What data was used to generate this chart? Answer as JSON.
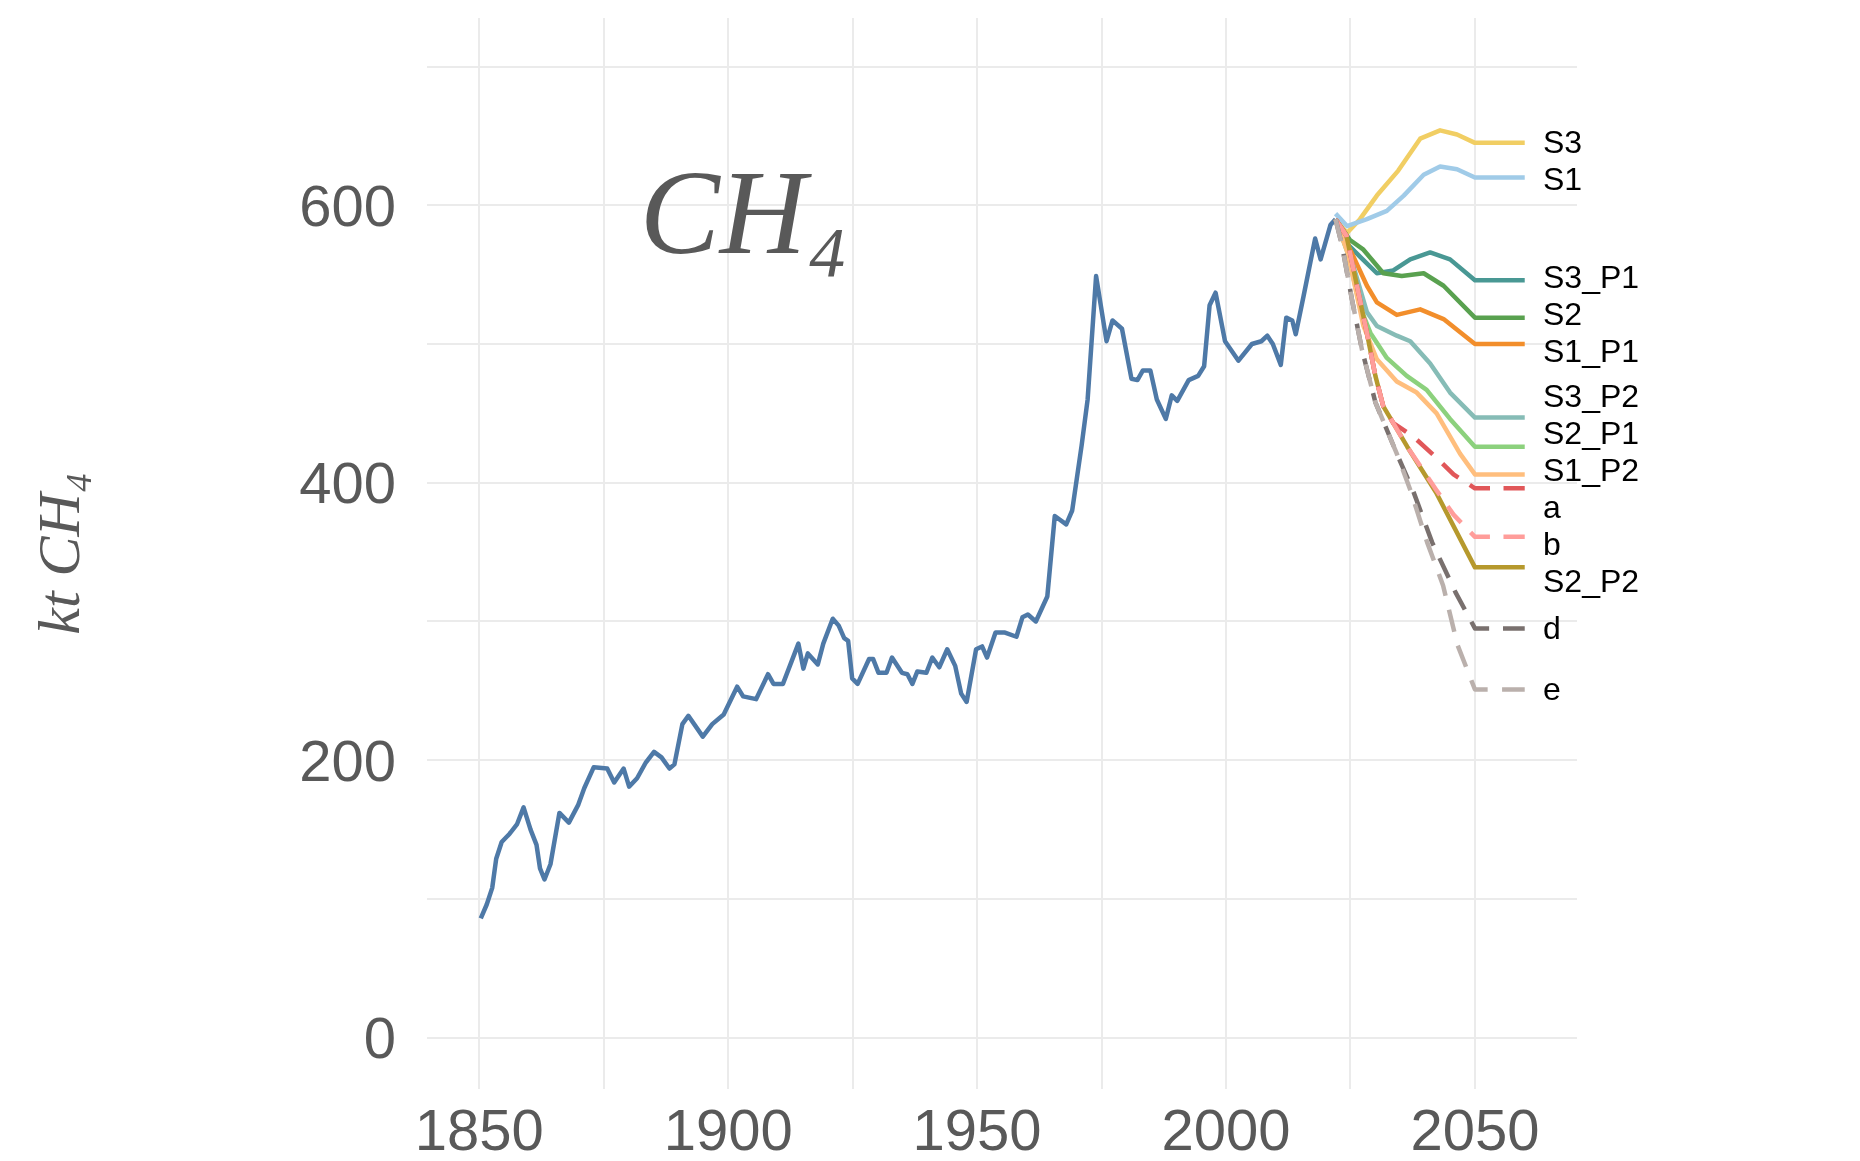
{
  "chart_data": {
    "type": "line",
    "title": "CH₄",
    "ylabel": "kt CH₄",
    "xlim": [
      1839.5,
      2070.5
    ],
    "ylim": [
      -37,
      735
    ],
    "xticks": [
      1850,
      {
        "value": 1875,
        "label": null
      },
      1900,
      {
        "value": 1925,
        "label": null
      },
      1950,
      {
        "value": 1975,
        "label": null
      },
      2000,
      {
        "value": 2025,
        "label": null
      },
      2050
    ],
    "yticks": [
      0,
      {
        "value": 100,
        "label": null
      },
      200,
      {
        "value": 300,
        "label": null
      },
      400,
      {
        "value": 500,
        "label": null
      },
      600,
      {
        "value": 700,
        "label": null
      }
    ],
    "grid": true,
    "legend": false,
    "series": [
      {
        "color": "#4e79a7",
        "x": [
          1850.3,
          1851.5,
          1852.6,
          1853.4,
          1854.5,
          1856.1,
          1857.6,
          1858.9,
          1860.3,
          1861.5,
          1862.2,
          1863.1,
          1864.3,
          1866.1,
          1868.0,
          1869.9,
          1871.1,
          1873.0,
          1875.7,
          1877.1,
          1879.0,
          1880.1,
          1881.7,
          1883.4,
          1885.1,
          1886.6,
          1888.2,
          1889.2,
          1890.8,
          1892.0,
          1894.9,
          1896.8,
          1899.1,
          1901.8,
          1903.0,
          1905.6,
          1908.0,
          1909.1,
          1911.0,
          1914.1,
          1915.1,
          1916.0,
          1918.0,
          1919.1,
          1921.0,
          1922.2,
          1923.3,
          1924.1,
          1924.9,
          1926.0,
          1928.3,
          1929.1,
          1930.2,
          1931.8,
          1932.9,
          1934.9,
          1936.0,
          1937.0,
          1938.0,
          1939.8,
          1941.0,
          1942.4,
          1944.0,
          1945.6,
          1946.8,
          1947.9,
          1949.8,
          1951.0,
          1952.0,
          1953.7,
          1955.6,
          1957.9,
          1959.1,
          1960.2,
          1961.8,
          1964.1,
          1965.6,
          1967.9,
          1969.1,
          1971.0,
          1972.2,
          1973.9,
          1976.0,
          1977.2,
          1979.1,
          1981.0,
          1982.2,
          1983.3,
          1984.8,
          1986.1,
          1987.9,
          1989.1,
          1990.2,
          1992.5,
          1994.4,
          1995.6,
          1996.7,
          1997.9,
          1999.8,
          2002.5,
          2005.2,
          2007.1,
          2008.3,
          2009.4,
          2011.0,
          2012.1,
          2013.3,
          2014.0,
          2015.6,
          2017.9,
          2019.0,
          2021.0,
          2022.0
        ],
        "values": [
          86,
          96,
          108,
          129,
          141,
          147,
          154,
          166,
          150,
          139,
          122,
          114,
          125,
          162,
          155,
          168,
          180,
          195,
          194,
          184,
          194,
          181,
          187,
          198,
          206,
          202,
          194,
          197,
          226,
          232,
          217,
          226,
          233,
          253,
          246,
          244,
          262,
          255,
          255,
          284,
          266,
          277,
          269,
          284,
          302,
          297,
          288,
          286,
          259,
          255,
          273,
          273,
          263,
          263,
          274,
          263,
          262,
          255,
          264,
          263,
          274,
          267,
          280,
          268,
          248,
          242,
          280,
          282,
          274,
          292,
          292,
          289,
          303,
          305,
          300,
          318,
          376,
          370,
          380,
          427,
          460,
          549,
          502,
          517,
          511,
          475,
          474,
          481,
          481,
          460,
          446,
          463,
          459,
          474,
          477,
          484,
          528,
          537,
          502,
          488,
          500,
          502,
          506,
          500,
          485,
          519,
          517,
          507,
          535,
          576,
          561,
          586,
          590
        ]
      },
      {
        "name": "S3",
        "color": "#f1ce63",
        "x": [
          2022,
          2024.3,
          2026.9,
          2030.3,
          2034.6,
          2039,
          2043,
          2046.4,
          2050,
          2060
        ],
        "values": [
          590,
          580,
          590,
          607,
          625,
          648,
          654,
          651,
          645,
          645
        ]
      },
      {
        "name": "S1",
        "color": "#a0cbe8",
        "x": [
          2022,
          2024.3,
          2028.3,
          2032.3,
          2035.7,
          2039.7,
          2043,
          2046.4,
          2050,
          2060
        ],
        "values": [
          594,
          585,
          590,
          596,
          607,
          622,
          628,
          626,
          620,
          620
        ]
      },
      {
        "name": "S3_P1",
        "color": "#499894",
        "x": [
          2022,
          2023.6,
          2026.9,
          2030.3,
          2033.6,
          2037,
          2041,
          2045,
          2050,
          2060
        ],
        "values": [
          590,
          575,
          563,
          551,
          553,
          561,
          566,
          561,
          546,
          546
        ]
      },
      {
        "name": "S2",
        "color": "#59a14f",
        "x": [
          2022,
          2024.9,
          2027.6,
          2031.6,
          2035.3,
          2039.7,
          2043.7,
          2050,
          2060
        ],
        "values": [
          590,
          575,
          568,
          551,
          549,
          551,
          542,
          519,
          519
        ]
      },
      {
        "name": "S1_P1",
        "color": "#f28e2b",
        "x": [
          2022,
          2025.6,
          2028.3,
          2030.3,
          2034.3,
          2039,
          2043.7,
          2050,
          2060
        ],
        "values": [
          590,
          563,
          542,
          530,
          521,
          525,
          518,
          500,
          500
        ]
      },
      {
        "name": "S3_P2",
        "color": "#86bcb6",
        "x": [
          2022,
          2025.6,
          2028.3,
          2030.3,
          2034.3,
          2037,
          2041,
          2045,
          2050,
          2060
        ],
        "values": [
          590,
          556,
          523,
          513,
          506,
          502,
          486,
          465,
          447,
          447
        ]
      },
      {
        "name": "S2_P1",
        "color": "#8cd17d",
        "x": [
          2022,
          2024.5,
          2026.9,
          2029,
          2032.3,
          2036.3,
          2040.3,
          2045,
          2050,
          2060
        ],
        "values": [
          590,
          565,
          527,
          508,
          490,
          477,
          467,
          446,
          426,
          426
        ]
      },
      {
        "name": "S1_P2",
        "color": "#ffbe7d",
        "x": [
          2022,
          2024.5,
          2027.6,
          2030.3,
          2034.3,
          2038.3,
          2042.3,
          2047,
          2050,
          2060
        ],
        "values": [
          590,
          565,
          513,
          489,
          473,
          465,
          450,
          421,
          406,
          406
        ]
      },
      {
        "name": "S2_P2",
        "color": "#b6992d",
        "x": [
          2022,
          2024.2,
          2026.3,
          2028.3,
          2030,
          2031.6,
          2033.6,
          2036.4,
          2042.2,
          2050,
          2060
        ],
        "values": [
          590,
          578,
          542,
          508,
          477,
          455,
          443,
          426,
          393,
          339,
          339
        ]
      },
      {
        "name": "a",
        "color": "#e15759",
        "line_style": "dashed",
        "x": [
          2022,
          2024.2,
          2026.3,
          2028.3,
          2030,
          2031.6,
          2033.6,
          2037.7,
          2042.3,
          2045.7,
          2050,
          2060
        ],
        "values": [
          590,
          578,
          542,
          508,
          477,
          455,
          443,
          433,
          418,
          406,
          396,
          396
        ]
      },
      {
        "name": "b",
        "color": "#ff9d9a",
        "line_style": "dashed",
        "x": [
          2022,
          2024.2,
          2026.3,
          2028.3,
          2030,
          2031.6,
          2033.6,
          2036.4,
          2042.2,
          2045.7,
          2050,
          2060
        ],
        "values": [
          590,
          578,
          542,
          508,
          477,
          455,
          443,
          426,
          395,
          377,
          361,
          361
        ]
      },
      {
        "name": "d",
        "color": "#79706e",
        "line_style": "dashed",
        "x": [
          2022,
          2023.3,
          2025.3,
          2027.3,
          2030,
          2034.3,
          2037.6,
          2041.4,
          2046.1,
          2050,
          2060
        ],
        "values": [
          590,
          571,
          532,
          496,
          458,
          421,
          394,
          357,
          321,
          295,
          295
        ]
      },
      {
        "name": "e",
        "color": "#bab0ac",
        "line_style": "dashed",
        "x": [
          2022,
          2023.3,
          2025.3,
          2027.3,
          2030,
          2034.3,
          2037.1,
          2040.4,
          2043.6,
          2046.5,
          2050,
          2060
        ],
        "values": [
          590,
          571,
          532,
          496,
          458,
          421,
          394,
          357,
          326,
          283,
          251,
          251
        ]
      }
    ]
  }
}
